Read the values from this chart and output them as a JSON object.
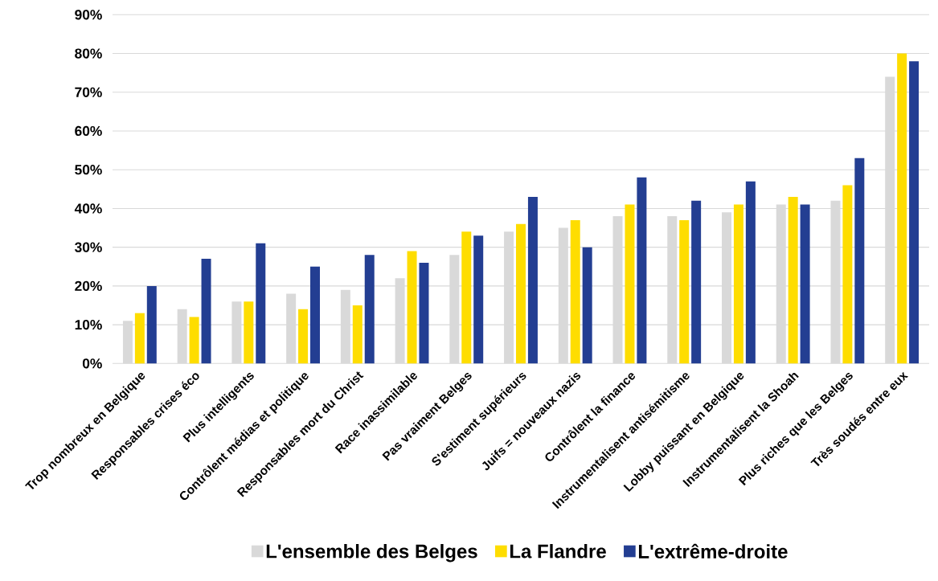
{
  "chart_data": {
    "type": "bar",
    "categories": [
      "Trop nombreux en Belgique",
      "Responsables crises éco",
      "Plus intelligents",
      "Contrôlent médias et politique",
      "Responsables mort du Christ",
      "Race inassimilable",
      "Pas vraiment Belges",
      "S'estiment supérieurs",
      "Juifs = nouveaux nazis",
      "Contrôlent la finance",
      "Instrumentalisent antisémitisme",
      "Lobby puissant en Belgique",
      "Instrumentalisent la Shoah",
      "Plus riches que les Belges",
      "Très soudés entre eux"
    ],
    "series": [
      {
        "name": "L'ensemble des Belges",
        "color": "#d9d9d9",
        "values": [
          11,
          14,
          16,
          18,
          19,
          22,
          28,
          34,
          35,
          38,
          38,
          39,
          41,
          42,
          74
        ]
      },
      {
        "name": "La Flandre",
        "color": "#fedd00",
        "values": [
          13,
          12,
          16,
          14,
          15,
          29,
          34,
          36,
          37,
          41,
          37,
          41,
          43,
          46,
          80
        ]
      },
      {
        "name": "L'extrême-droite",
        "color": "#233e92",
        "values": [
          20,
          27,
          31,
          25,
          28,
          26,
          33,
          43,
          30,
          48,
          42,
          47,
          41,
          53,
          78
        ]
      }
    ],
    "ylim": [
      0,
      90
    ],
    "yticks": [
      {
        "value": 0,
        "label": "0%"
      },
      {
        "value": 10,
        "label": "10%"
      },
      {
        "value": 20,
        "label": "20%"
      },
      {
        "value": 30,
        "label": "30%"
      },
      {
        "value": 40,
        "label": "40%"
      },
      {
        "value": 50,
        "label": "50%"
      },
      {
        "value": 60,
        "label": "60%"
      },
      {
        "value": 70,
        "label": "70%"
      },
      {
        "value": 80,
        "label": "80%"
      },
      {
        "value": 90,
        "label": "90%"
      }
    ],
    "grid": "y",
    "legend": "bottom"
  }
}
